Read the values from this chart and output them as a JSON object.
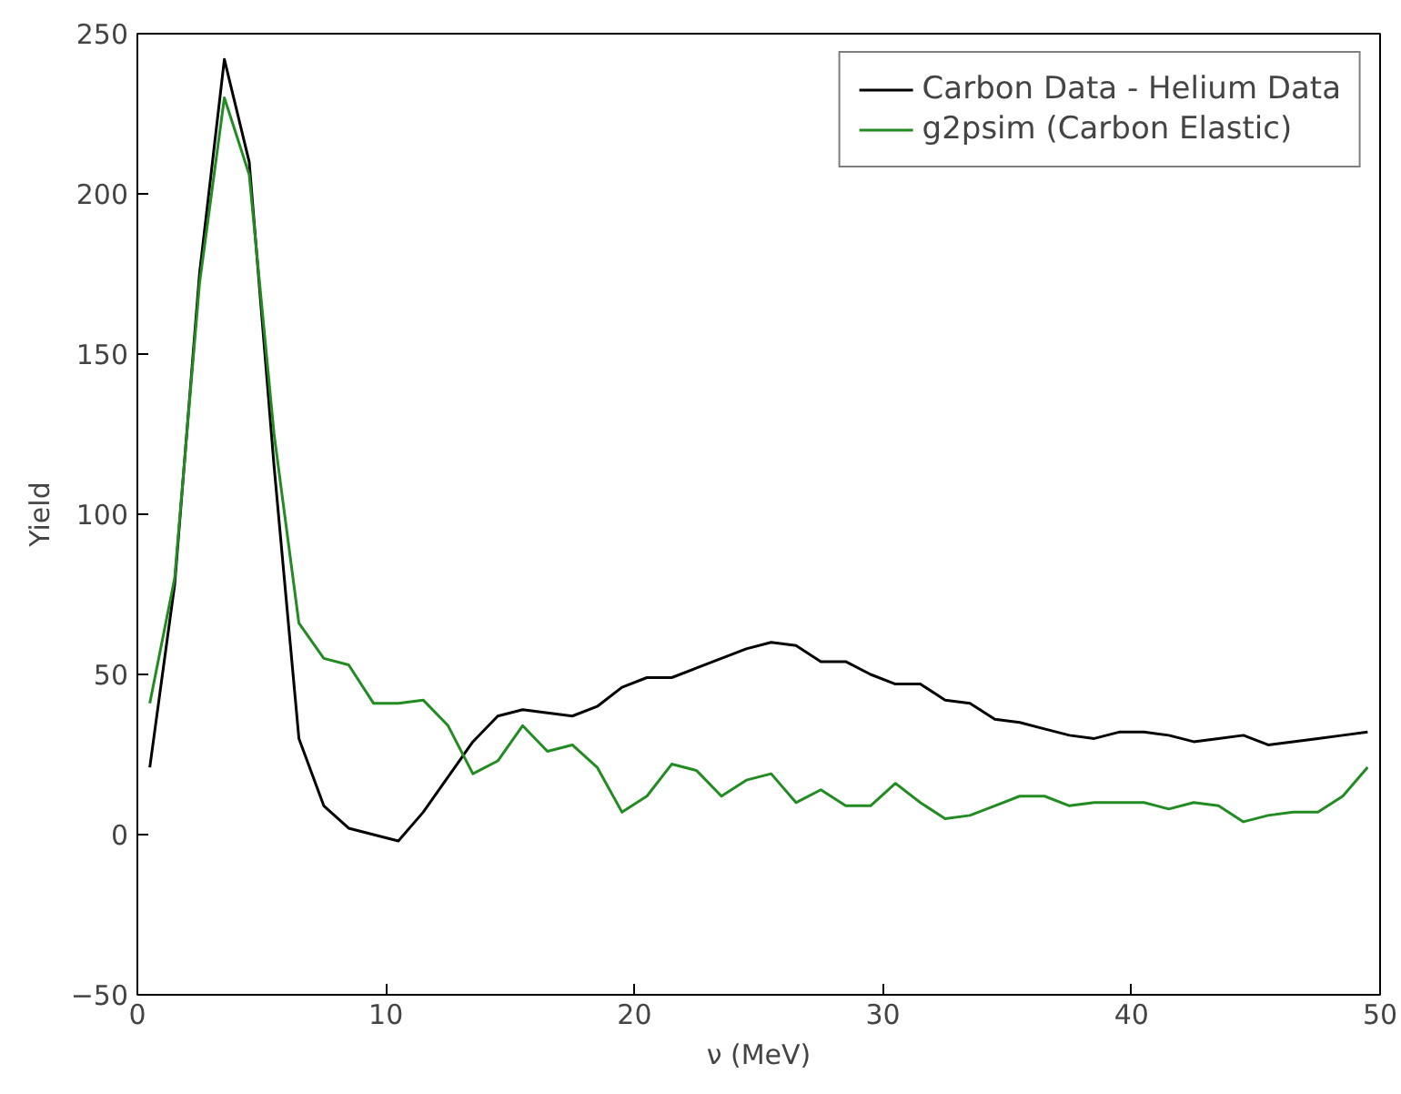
{
  "chart_data": {
    "type": "line",
    "xlabel": "ν (MeV)",
    "ylabel": "Yield",
    "x": [
      0.5,
      1.5,
      2.5,
      3.5,
      4.5,
      5.5,
      6.5,
      7.5,
      8.5,
      9.5,
      10.5,
      11.5,
      12.5,
      13.5,
      14.5,
      15.5,
      16.5,
      17.5,
      18.5,
      19.5,
      20.5,
      21.5,
      22.5,
      23.5,
      24.5,
      25.5,
      26.5,
      27.5,
      28.5,
      29.5,
      30.5,
      31.5,
      32.5,
      33.5,
      34.5,
      35.5,
      36.5,
      37.5,
      38.5,
      39.5,
      40.5,
      41.5,
      42.5,
      43.5,
      44.5,
      45.5,
      46.5,
      47.5,
      48.5,
      49.5
    ],
    "series": [
      {
        "name": "Carbon Data - Helium Data",
        "color": "#000000",
        "values": [
          21,
          78,
          175,
          242,
          210,
          115,
          30,
          9,
          2,
          0,
          -2,
          7,
          18,
          29,
          37,
          39,
          38,
          37,
          40,
          46,
          49,
          49,
          52,
          55,
          58,
          60,
          59,
          54,
          54,
          50,
          47,
          47,
          42,
          41,
          36,
          35,
          33,
          31,
          30,
          32,
          32,
          31,
          29,
          30,
          31,
          28,
          29,
          30,
          31,
          32
        ]
      },
      {
        "name": "g2psim (Carbon Elastic)",
        "color": "#228b22",
        "values": [
          41,
          80,
          172,
          230,
          206,
          125,
          66,
          55,
          53,
          41,
          41,
          42,
          34,
          19,
          23,
          34,
          26,
          28,
          21,
          7,
          12,
          22,
          20,
          12,
          17,
          19,
          10,
          14,
          9,
          9,
          16,
          10,
          5,
          6,
          9,
          12,
          12,
          9,
          10,
          10,
          10,
          8,
          10,
          9,
          4,
          6,
          7,
          7,
          12,
          21
        ]
      }
    ],
    "xlim": [
      0,
      50
    ],
    "ylim": [
      -50,
      250
    ],
    "xticks": [
      0,
      10,
      20,
      30,
      40,
      50
    ],
    "yticks": [
      -50,
      0,
      50,
      100,
      150,
      200,
      250
    ],
    "grid": false,
    "legend": "top right",
    "line_style": "solid",
    "marker": "none"
  }
}
